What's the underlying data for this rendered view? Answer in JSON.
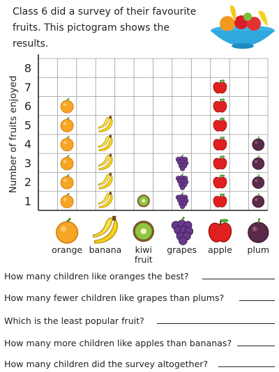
{
  "intro": {
    "line1": "Class 6 did a survey of their favourite",
    "line2": "fruits. This pictogram shows the results."
  },
  "chart_data": {
    "type": "pictogram",
    "ylabel": "Number of fruits enjoyed",
    "ylim": [
      0,
      8
    ],
    "yticks": [
      "1",
      "2",
      "3",
      "4",
      "5",
      "6",
      "7",
      "8"
    ],
    "categories": [
      {
        "key": "orange",
        "label1": "orange",
        "label2": "",
        "value": 6,
        "color": "#f5a020"
      },
      {
        "key": "banana",
        "label1": "banana",
        "label2": "",
        "value": 5,
        "color": "#f6d21e"
      },
      {
        "key": "kiwi",
        "label1": "kiwi",
        "label2": "fruit",
        "value": 1,
        "color": "#7a5a2a"
      },
      {
        "key": "grapes",
        "label1": "grapes",
        "label2": "",
        "value": 3,
        "color": "#6a3a8c"
      },
      {
        "key": "apple",
        "label1": "apple",
        "label2": "",
        "value": 7,
        "color": "#e02020"
      },
      {
        "key": "plum",
        "label1": "plum",
        "label2": "",
        "value": 4,
        "color": "#5a2a4a"
      }
    ],
    "grid": true
  },
  "questions": [
    "How many children like oranges the best?",
    "How many fewer children like grapes than plums?",
    "Which is the least popular fruit?",
    "How many more children like apples than bananas?",
    "How many children did the survey altogether?"
  ]
}
